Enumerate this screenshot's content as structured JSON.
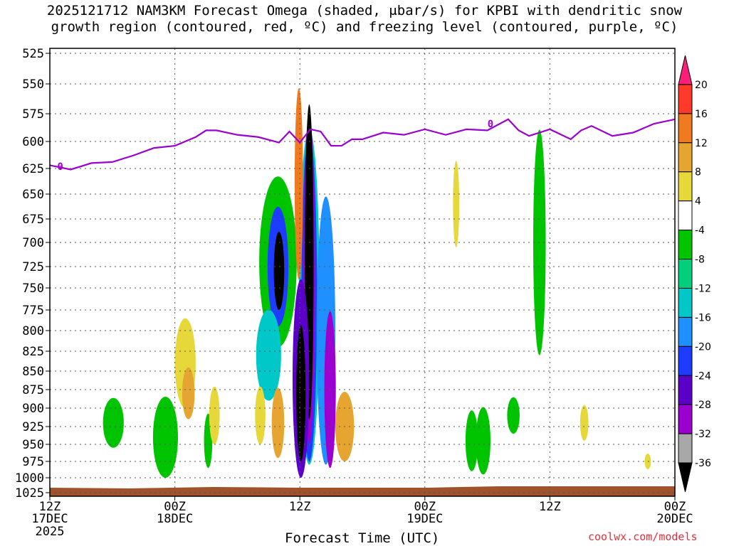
{
  "chart_data": {
    "type": "heatmap",
    "title_line1": "2025121712 NAM3KM Forecast Omega (shaded, μbar/s) for KPBI with dendritic snow",
    "title_line2": "growth region (contoured, red, ºC) and freezing level (contoured, purple, ºC)",
    "xlabel": "Forecast Time (UTC)",
    "credit": "coolwx.com/models",
    "y_ticks": [
      525,
      550,
      575,
      600,
      625,
      650,
      675,
      700,
      725,
      750,
      775,
      800,
      825,
      850,
      875,
      900,
      925,
      950,
      975,
      1000,
      1025
    ],
    "x_ticks": [
      {
        "hour": 0,
        "label": "12Z",
        "sub": "17DEC",
        "sub2": "2025"
      },
      {
        "hour": 12,
        "label": "00Z",
        "sub": "18DEC",
        "sub2": ""
      },
      {
        "hour": 24,
        "label": "12Z",
        "sub": "",
        "sub2": ""
      },
      {
        "hour": 36,
        "label": "00Z",
        "sub": "19DEC",
        "sub2": ""
      },
      {
        "hour": 48,
        "label": "12Z",
        "sub": "",
        "sub2": ""
      },
      {
        "hour": 60,
        "label": "00Z",
        "sub": "20DEC",
        "sub2": ""
      }
    ],
    "colorbar": {
      "labels": [
        "20",
        "16",
        "12",
        "8",
        "4",
        "-4",
        "-8",
        "-12",
        "-16",
        "-20",
        "-24",
        "-28",
        "-32",
        "-36"
      ],
      "colors": [
        "#ff1f7a",
        "#ff3a2a",
        "#f07a1f",
        "#e5a530",
        "#e6d83a",
        "#ffffff",
        "#00c400",
        "#00d07a",
        "#00c8c8",
        "#1e90ff",
        "#1e3cff",
        "#5a00c8",
        "#9b00d0",
        "#a8a8a8",
        "#000000"
      ]
    },
    "freezing_level": {
      "label": "0",
      "hours": [
        0,
        2,
        4,
        6,
        8,
        10,
        12,
        14,
        15,
        16,
        18,
        20,
        22,
        23,
        24,
        25,
        26,
        27,
        28,
        29,
        30,
        32,
        34,
        36,
        38,
        40,
        42,
        44,
        45,
        46,
        48,
        50,
        51,
        52,
        54,
        56,
        58,
        60
      ],
      "pressure": [
        622,
        626,
        620,
        619,
        613,
        606,
        604,
        596,
        590,
        590,
        594,
        596,
        601,
        591,
        601,
        589,
        591,
        604,
        604,
        598,
        598,
        592,
        594,
        589,
        594,
        589,
        590,
        580,
        590,
        595,
        589,
        598,
        590,
        586,
        595,
        592,
        584,
        580
      ]
    },
    "omega_cells": [
      {
        "h": 24.9,
        "p": 760,
        "rh": 1.0,
        "rp": 220,
        "v": -12
      },
      {
        "h": 24.9,
        "p": 760,
        "rh": 0.75,
        "rp": 215,
        "v": -20
      },
      {
        "h": 24.9,
        "p": 740,
        "rh": 0.55,
        "rp": 210,
        "v": -28
      },
      {
        "h": 24.9,
        "p": 720,
        "rh": 0.42,
        "rp": 195,
        "v": -36
      },
      {
        "h": 24.1,
        "p": 860,
        "rh": 0.8,
        "rp": 140,
        "v": -24
      },
      {
        "h": 24.1,
        "p": 880,
        "rh": 0.45,
        "rp": 95,
        "v": -36
      },
      {
        "h": 26.5,
        "p": 800,
        "rh": 0.9,
        "rp": 180,
        "v": -16
      },
      {
        "h": 26.9,
        "p": 875,
        "rh": 0.55,
        "rp": 110,
        "v": -28
      },
      {
        "h": 21.9,
        "p": 720,
        "rh": 1.8,
        "rp": 100,
        "v": -8
      },
      {
        "h": 21.9,
        "p": 725,
        "rh": 1.0,
        "rp": 70,
        "v": -20
      },
      {
        "h": 22.0,
        "p": 730,
        "rh": 0.5,
        "rp": 45,
        "v": -36
      },
      {
        "h": 21.0,
        "p": 830,
        "rh": 1.2,
        "rp": 60,
        "v": -12
      },
      {
        "h": 6.1,
        "p": 920,
        "rh": 1.0,
        "rp": 35,
        "v": -8
      },
      {
        "h": 11.1,
        "p": 940,
        "rh": 1.2,
        "rp": 60,
        "v": -8
      },
      {
        "h": 15.2,
        "p": 945,
        "rh": 0.4,
        "rp": 40,
        "v": -8
      },
      {
        "h": 47.0,
        "p": 700,
        "rh": 0.6,
        "rp": 130,
        "v": -8
      },
      {
        "h": 40.5,
        "p": 945,
        "rh": 0.6,
        "rp": 45,
        "v": -8
      },
      {
        "h": 41.6,
        "p": 945,
        "rh": 0.7,
        "rp": 50,
        "v": -8
      },
      {
        "h": 44.5,
        "p": 910,
        "rh": 0.6,
        "rp": 25,
        "v": -8
      },
      {
        "h": 28.3,
        "p": 925,
        "rh": 0.9,
        "rp": 50,
        "v": 8
      },
      {
        "h": 20.2,
        "p": 910,
        "rh": 0.5,
        "rp": 40,
        "v": 4
      },
      {
        "h": 21.9,
        "p": 920,
        "rh": 0.6,
        "rp": 50,
        "v": 8
      },
      {
        "h": 13.0,
        "p": 840,
        "rh": 1.0,
        "rp": 60,
        "v": 4
      },
      {
        "h": 13.3,
        "p": 880,
        "rh": 0.6,
        "rp": 35,
        "v": 8
      },
      {
        "h": 23.9,
        "p": 640,
        "rh": 0.4,
        "rp": 100,
        "v": 12
      },
      {
        "h": 15.8,
        "p": 910,
        "rh": 0.5,
        "rp": 40,
        "v": 4
      },
      {
        "h": 39.0,
        "p": 660,
        "rh": 0.3,
        "rp": 45,
        "v": 4
      },
      {
        "h": 51.3,
        "p": 920,
        "rh": 0.4,
        "rp": 25,
        "v": 4
      },
      {
        "h": 57.4,
        "p": 975,
        "rh": 0.3,
        "rp": 12,
        "v": 4
      }
    ]
  }
}
